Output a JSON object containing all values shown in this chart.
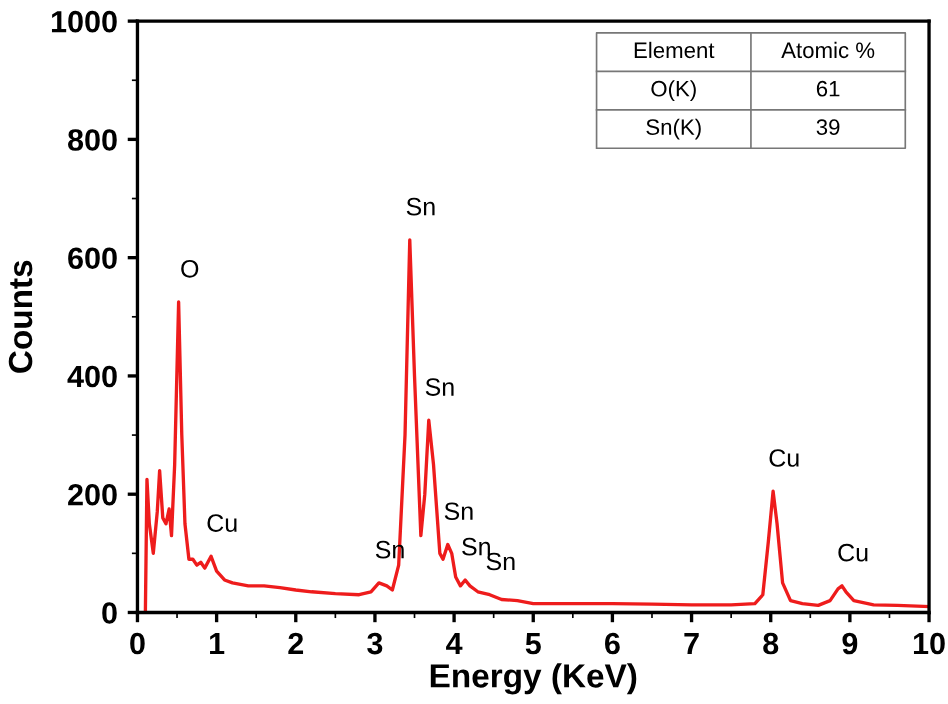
{
  "chart_data": {
    "type": "line",
    "xlabel": "Energy (KeV)",
    "ylabel": "Counts",
    "xlim": [
      0,
      10
    ],
    "ylim": [
      0,
      1000
    ],
    "xticks": [
      0,
      1,
      2,
      3,
      4,
      5,
      6,
      7,
      8,
      9,
      10
    ],
    "yticks": [
      0,
      200,
      400,
      600,
      800,
      1000
    ],
    "grid": false,
    "legend": false,
    "marker": "none",
    "line_style": "solid",
    "series": [
      {
        "color": "#ee1c1c",
        "x": [
          0.1,
          0.12,
          0.15,
          0.2,
          0.25,
          0.28,
          0.32,
          0.36,
          0.4,
          0.43,
          0.47,
          0.52,
          0.56,
          0.6,
          0.65,
          0.7,
          0.75,
          0.8,
          0.85,
          0.93,
          1.0,
          1.1,
          1.2,
          1.4,
          1.6,
          1.8,
          2.0,
          2.2,
          2.5,
          2.8,
          2.95,
          3.05,
          3.15,
          3.22,
          3.3,
          3.38,
          3.44,
          3.5,
          3.58,
          3.63,
          3.68,
          3.74,
          3.82,
          3.86,
          3.92,
          3.97,
          4.02,
          4.08,
          4.14,
          4.2,
          4.3,
          4.45,
          4.6,
          4.8,
          5.0,
          5.5,
          6.0,
          6.5,
          7.0,
          7.5,
          7.8,
          7.9,
          7.97,
          8.03,
          8.08,
          8.15,
          8.25,
          8.4,
          8.6,
          8.75,
          8.85,
          8.9,
          8.95,
          9.05,
          9.3,
          9.6,
          10.0
        ],
        "values": [
          0,
          225,
          150,
          100,
          170,
          240,
          160,
          150,
          175,
          130,
          250,
          525,
          300,
          150,
          90,
          90,
          80,
          85,
          75,
          95,
          70,
          55,
          50,
          45,
          45,
          42,
          38,
          35,
          32,
          30,
          35,
          50,
          45,
          38,
          80,
          300,
          630,
          400,
          130,
          200,
          325,
          250,
          100,
          90,
          115,
          100,
          60,
          45,
          55,
          45,
          35,
          30,
          22,
          20,
          15,
          15,
          15,
          14,
          13,
          13,
          15,
          30,
          120,
          205,
          150,
          50,
          20,
          15,
          12,
          20,
          40,
          45,
          35,
          20,
          13,
          12,
          10
        ]
      }
    ],
    "annotations": [
      {
        "text": "O",
        "x": 0.52,
        "y": 525
      },
      {
        "text": "Cu",
        "x": 0.93,
        "y": 95
      },
      {
        "text": "Sn",
        "x": 3.05,
        "y": 50
      },
      {
        "text": "Sn",
        "x": 3.44,
        "y": 630
      },
      {
        "text": "Sn",
        "x": 3.68,
        "y": 325
      },
      {
        "text": "Sn",
        "x": 3.92,
        "y": 115
      },
      {
        "text": "Sn",
        "x": 4.14,
        "y": 55
      },
      {
        "text": "Sn",
        "x": 4.45,
        "y": 30
      },
      {
        "text": "Cu",
        "x": 8.03,
        "y": 205
      },
      {
        "text": "Cu",
        "x": 8.9,
        "y": 45
      },
      "Element",
      "Atomic %",
      "O(K)",
      "61",
      "Sn(K)",
      "39"
    ]
  }
}
